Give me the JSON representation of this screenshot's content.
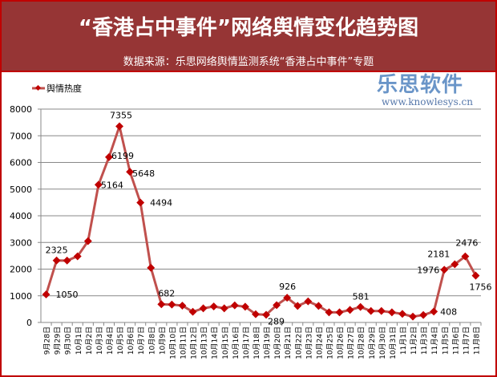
{
  "header": {
    "title": "“香港占中事件”网络舆情变化趋势图",
    "subtitle": "数据来源：乐思网络舆情监测系统“香港占中事件”专题"
  },
  "watermark": {
    "logo": "乐思软件",
    "url": "www.knowlesys.cn"
  },
  "colors": {
    "line": "#c0504d",
    "marker": "#c00000",
    "header": "#963535",
    "border": "#c00000"
  },
  "chart_data": {
    "type": "line",
    "title": "“香港占中事件”网络舆情变化趋势图",
    "legend": {
      "entries": [
        "舆情热度"
      ],
      "placement": "top-left"
    },
    "ylim": [
      0,
      8000
    ],
    "yticks": [
      "0",
      "1000",
      "2000",
      "3000",
      "4000",
      "5000",
      "6000",
      "7000",
      "8000"
    ],
    "grid": true,
    "categories": [
      "9月28日",
      "9月29日",
      "9月30日",
      "10月1日",
      "10月2日",
      "10月3日",
      "10月4日",
      "10月5日",
      "10月6日",
      "10月7日",
      "10月8日",
      "10月9日",
      "10月10日",
      "10月11日",
      "10月12日",
      "10月13日",
      "10月14日",
      "10月15日",
      "10月16日",
      "10月17日",
      "10月18日",
      "10月19日",
      "10月20日",
      "10月21日",
      "10月22日",
      "10月23日",
      "10月24日",
      "10月25日",
      "10月26日",
      "10月27日",
      "10月28日",
      "10月29日",
      "10月30日",
      "10月31日",
      "11月1日",
      "11月2日",
      "11月3日",
      "11月4日",
      "11月5日",
      "11月6日",
      "11月7日",
      "11月8日"
    ],
    "series": [
      {
        "name": "舆情热度",
        "values": [
          1050,
          2325,
          2320,
          2480,
          3050,
          5164,
          6199,
          7355,
          5648,
          4494,
          2050,
          682,
          670,
          630,
          400,
          530,
          600,
          530,
          640,
          590,
          310,
          289,
          650,
          926,
          620,
          790,
          620,
          380,
          380,
          470,
          581,
          430,
          430,
          380,
          320,
          220,
          280,
          408,
          1976,
          2181,
          2476,
          1756
        ]
      }
    ],
    "data_labels": [
      {
        "index": 0,
        "text": "1050"
      },
      {
        "index": 1,
        "text": "2325"
      },
      {
        "index": 5,
        "text": "5164"
      },
      {
        "index": 6,
        "text": "6199"
      },
      {
        "index": 7,
        "text": "7355"
      },
      {
        "index": 8,
        "text": "5648"
      },
      {
        "index": 9,
        "text": "4494"
      },
      {
        "index": 11,
        "text": "682"
      },
      {
        "index": 21,
        "text": "289"
      },
      {
        "index": 23,
        "text": "926"
      },
      {
        "index": 30,
        "text": "581"
      },
      {
        "index": 37,
        "text": "408"
      },
      {
        "index": 38,
        "text": "1976"
      },
      {
        "index": 39,
        "text": "2181"
      },
      {
        "index": 40,
        "text": "2476"
      },
      {
        "index": 41,
        "text": "1756"
      }
    ]
  }
}
